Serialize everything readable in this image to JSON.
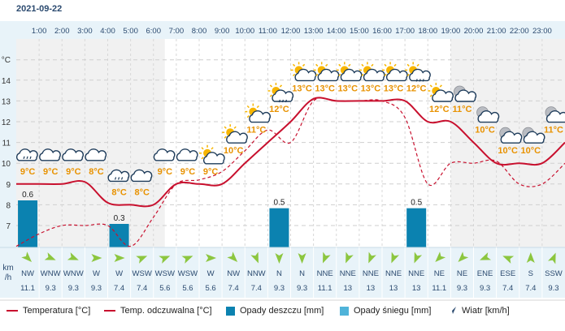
{
  "date": "2021-09-22",
  "y_unit": "°C",
  "wind_unit_line1": "km",
  "wind_unit_line2": "/h",
  "legend": {
    "temperature": "Temperatura [°C]",
    "feels_like": "Temp. odczuwalna [°C]",
    "rain": "Opady deszczu [mm]",
    "snow": "Opady śniegu [mm]",
    "wind": "Wiatr [km/h]"
  },
  "colors": {
    "temperature": "#c8102e",
    "feels_like": "#c8102e",
    "rain": "#0b82b0",
    "snow": "#4fb3d9",
    "wind_arrow": "#8cc63f",
    "hour_label": "#2b4a6f",
    "temp_label": "#e89200"
  },
  "chart_data": {
    "type": "line",
    "hours": [
      "1:00",
      "2:00",
      "3:00",
      "4:00",
      "5:00",
      "6:00",
      "7:00",
      "8:00",
      "9:00",
      "10:00",
      "11:00",
      "12:00",
      "13:00",
      "14:00",
      "15:00",
      "16:00",
      "17:00",
      "18:00",
      "19:00",
      "20:00",
      "21:00",
      "22:00",
      "23:00"
    ],
    "x": [
      0,
      1,
      2,
      3,
      4,
      5,
      6,
      7,
      8,
      9,
      10,
      11,
      12,
      13,
      14,
      15,
      16,
      17,
      18,
      19,
      20,
      21,
      22,
      23,
      24
    ],
    "series": [
      {
        "name": "Temperatura [°C]",
        "values": [
          9.0,
          9.0,
          9.0,
          9.1,
          8.1,
          8.0,
          8.0,
          9.0,
          9.0,
          9.0,
          10.0,
          11.0,
          12.0,
          13.1,
          13.0,
          13.0,
          13.0,
          13.0,
          12.0,
          12.0,
          11.0,
          10.0,
          10.0,
          10.0,
          11.0
        ]
      },
      {
        "name": "Temp. odczuwalna [°C]",
        "values": [
          6.0,
          6.6,
          7.0,
          7.0,
          7.0,
          6.0,
          7.4,
          9.0,
          9.2,
          9.6,
          10.6,
          11.6,
          11.0,
          13.0,
          13.0,
          13.0,
          13.0,
          12.2,
          9.0,
          10.0,
          10.0,
          10.1,
          9.0,
          9.0,
          10.0
        ]
      }
    ],
    "temp_labels": [
      {
        "x": 0.5,
        "text": "9°C",
        "icon": "cloud-light-rain-icon"
      },
      {
        "x": 1.5,
        "text": "9°C",
        "icon": "cloud-icon"
      },
      {
        "x": 2.5,
        "text": "9°C",
        "icon": "cloud-icon"
      },
      {
        "x": 3.5,
        "text": "8°C",
        "icon": "cloud-icon"
      },
      {
        "x": 4.5,
        "text": "8°C",
        "icon": "cloud-light-rain-icon"
      },
      {
        "x": 5.5,
        "text": "8°C",
        "icon": "cloud-icon"
      },
      {
        "x": 6.5,
        "text": "9°C",
        "icon": "cloud-icon"
      },
      {
        "x": 7.5,
        "text": "9°C",
        "icon": "cloud-icon"
      },
      {
        "x": 8.5,
        "text": "9°C",
        "icon": "sun-cloud-icon"
      },
      {
        "x": 9.5,
        "text": "10°C",
        "icon": "sun-cloud-icon"
      },
      {
        "x": 10.5,
        "text": "11°C",
        "icon": "sun-cloud-icon"
      },
      {
        "x": 11.5,
        "text": "12°C",
        "icon": "sun-cloud-rain-icon"
      },
      {
        "x": 12.5,
        "text": "13°C",
        "icon": "sun-cloud-icon"
      },
      {
        "x": 13.5,
        "text": "13°C",
        "icon": "sun-cloud-icon"
      },
      {
        "x": 14.5,
        "text": "13°C",
        "icon": "sun-cloud-icon"
      },
      {
        "x": 15.5,
        "text": "13°C",
        "icon": "sun-cloud-icon"
      },
      {
        "x": 16.5,
        "text": "13°C",
        "icon": "sun-cloud-icon"
      },
      {
        "x": 17.5,
        "text": "12°C",
        "icon": "sun-cloud-rain-icon"
      },
      {
        "x": 18.5,
        "text": "12°C",
        "icon": "sun-cloud-icon"
      },
      {
        "x": 19.5,
        "text": "11°C",
        "icon": "moon-cloud-icon"
      },
      {
        "x": 20.5,
        "text": "10°C",
        "icon": "moon-cloud-icon"
      },
      {
        "x": 21.5,
        "text": "10°C",
        "icon": "moon-cloud-icon"
      },
      {
        "x": 22.5,
        "text": "10°C",
        "icon": "moon-cloud-icon"
      },
      {
        "x": 23.5,
        "text": "11°C",
        "icon": "moon-cloud-icon"
      }
    ],
    "precip_bars": [
      {
        "x": 0.5,
        "value": 0.6,
        "label": "0.6"
      },
      {
        "x": 4.5,
        "value": 0.3,
        "label": "0.3"
      },
      {
        "x": 11.5,
        "value": 0.5,
        "label": "0.5"
      },
      {
        "x": 17.5,
        "value": 0.5,
        "label": "0.5"
      }
    ],
    "y_ticks": [
      7,
      8,
      9,
      10,
      11,
      12,
      13,
      14
    ],
    "ylim": [
      6,
      15
    ],
    "xlim": [
      0,
      24
    ],
    "precip_ylim": [
      0,
      1.05
    ],
    "shaded_night": [
      [
        0,
        6.5
      ],
      [
        19,
        24
      ]
    ],
    "wind": [
      {
        "dir": "NW",
        "speed": "11.1",
        "deg": 315
      },
      {
        "dir": "WNW",
        "speed": "9.3",
        "deg": 292.5
      },
      {
        "dir": "WNW",
        "speed": "9.3",
        "deg": 292.5
      },
      {
        "dir": "W",
        "speed": "9.3",
        "deg": 270
      },
      {
        "dir": "W",
        "speed": "7.4",
        "deg": 270
      },
      {
        "dir": "WSW",
        "speed": "7.4",
        "deg": 247.5
      },
      {
        "dir": "WSW",
        "speed": "5.6",
        "deg": 247.5
      },
      {
        "dir": "WSW",
        "speed": "5.6",
        "deg": 247.5
      },
      {
        "dir": "W",
        "speed": "5.6",
        "deg": 270
      },
      {
        "dir": "NW",
        "speed": "7.4",
        "deg": 315
      },
      {
        "dir": "NNW",
        "speed": "7.4",
        "deg": 337.5
      },
      {
        "dir": "N",
        "speed": "9.3",
        "deg": 0
      },
      {
        "dir": "N",
        "speed": "9.3",
        "deg": 0
      },
      {
        "dir": "NNE",
        "speed": "11.1",
        "deg": 22.5
      },
      {
        "dir": "NNE",
        "speed": "13",
        "deg": 22.5
      },
      {
        "dir": "NNE",
        "speed": "13",
        "deg": 22.5
      },
      {
        "dir": "NNE",
        "speed": "13",
        "deg": 22.5
      },
      {
        "dir": "NNE",
        "speed": "13",
        "deg": 22.5
      },
      {
        "dir": "NE",
        "speed": "11.1",
        "deg": 45
      },
      {
        "dir": "NE",
        "speed": "9.3",
        "deg": 45
      },
      {
        "dir": "ENE",
        "speed": "9.3",
        "deg": 67.5
      },
      {
        "dir": "ESE",
        "speed": "7.4",
        "deg": 112.5
      },
      {
        "dir": "S",
        "speed": "7.4",
        "deg": 180
      },
      {
        "dir": "SSW",
        "speed": "9.3",
        "deg": 202.5
      }
    ]
  }
}
